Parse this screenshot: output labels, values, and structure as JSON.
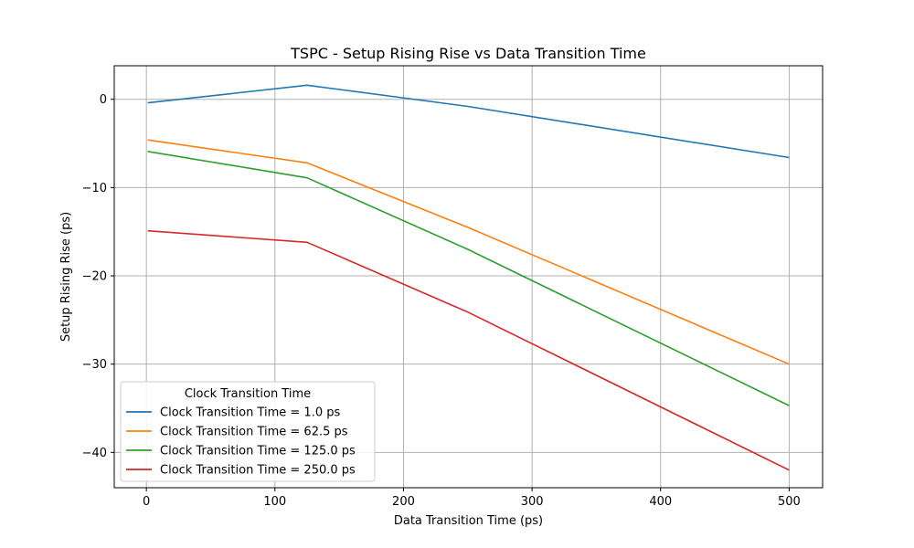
{
  "chart_data": {
    "type": "line",
    "title": "TSPC - Setup Rising Rise vs Data Transition Time",
    "xlabel": "Data Transition Time (ps)",
    "ylabel": "Setup Rising Rise (ps)",
    "x": [
      1,
      125,
      250,
      500
    ],
    "xlim": [
      -25,
      526
    ],
    "ylim": [
      -44,
      3.8
    ],
    "xticks": [
      0,
      100,
      200,
      300,
      400,
      500
    ],
    "yticks": [
      0,
      -10,
      -20,
      -30,
      -40
    ],
    "xtick_labels": [
      "0",
      "100",
      "200",
      "300",
      "400",
      "500"
    ],
    "ytick_labels": [
      "0",
      "−10",
      "−20",
      "−30",
      "−40"
    ],
    "grid": true,
    "legend": {
      "title": "Clock Transition Time",
      "placement": "lower-left"
    },
    "series": [
      {
        "name": "Clock Transition Time = 1.0 ps",
        "color": "#1f77b4",
        "values": [
          -0.4,
          1.6,
          -0.8,
          -6.6
        ]
      },
      {
        "name": "Clock Transition Time = 62.5 ps",
        "color": "#ff7f0e",
        "values": [
          -4.6,
          -7.2,
          -14.5,
          -30.0
        ]
      },
      {
        "name": "Clock Transition Time = 125.0 ps",
        "color": "#2ca02c",
        "values": [
          -5.9,
          -8.9,
          -17.0,
          -34.7
        ]
      },
      {
        "name": "Clock Transition Time = 250.0 ps",
        "color": "#d62728",
        "values": [
          -14.9,
          -16.2,
          -24.1,
          -42.0
        ]
      }
    ]
  }
}
